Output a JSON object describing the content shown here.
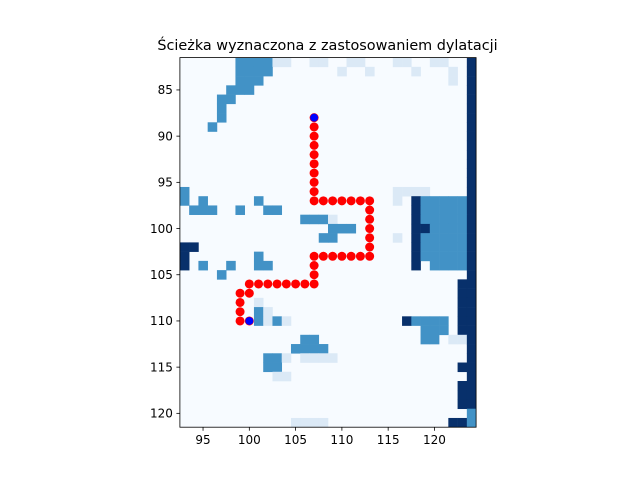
{
  "chart_data": {
    "type": "heatmap",
    "title": "Ścieżka wyznaczona z zastosowaniem dylatacji",
    "xlabel": "",
    "ylabel": "",
    "xlim": [
      92.5,
      124.5
    ],
    "ylim": [
      121.5,
      81.5
    ],
    "y_inverted": true,
    "grid": false,
    "colormap": "Blues",
    "colors": {
      "background": "#f7fbff",
      "light": "#dbe9f6",
      "medium": "#4292c6",
      "dark": "#08306b",
      "path": "#ff0000",
      "endpoint": "#0000ff"
    },
    "xticks": [
      95,
      100,
      105,
      110,
      115,
      120
    ],
    "yticks": [
      85,
      90,
      95,
      100,
      105,
      110,
      115,
      120
    ],
    "cell_levels": {
      "light": 1,
      "medium": 2,
      "dark": 3
    },
    "cells": [
      [
        99,
        82,
        2
      ],
      [
        100,
        82,
        2
      ],
      [
        101,
        82,
        2
      ],
      [
        102,
        82,
        2
      ],
      [
        103,
        82,
        1
      ],
      [
        104,
        82,
        1
      ],
      [
        107,
        82,
        1
      ],
      [
        108,
        82,
        1
      ],
      [
        111,
        82,
        1
      ],
      [
        112,
        82,
        1
      ],
      [
        116,
        82,
        1
      ],
      [
        117,
        82,
        1
      ],
      [
        120,
        82,
        1
      ],
      [
        121,
        82,
        1
      ],
      [
        124,
        82,
        3
      ],
      [
        99,
        83,
        2
      ],
      [
        100,
        83,
        2
      ],
      [
        101,
        83,
        2
      ],
      [
        102,
        83,
        2
      ],
      [
        110,
        83,
        1
      ],
      [
        113,
        83,
        1
      ],
      [
        118,
        83,
        1
      ],
      [
        122,
        83,
        1
      ],
      [
        124,
        83,
        3
      ],
      [
        99,
        84,
        2
      ],
      [
        100,
        84,
        2
      ],
      [
        101,
        84,
        2
      ],
      [
        122,
        84,
        1
      ],
      [
        124,
        84,
        3
      ],
      [
        98,
        85,
        2
      ],
      [
        99,
        85,
        2
      ],
      [
        100,
        85,
        2
      ],
      [
        124,
        85,
        3
      ],
      [
        97,
        86,
        2
      ],
      [
        98,
        86,
        2
      ],
      [
        124,
        86,
        3
      ],
      [
        97,
        87,
        2
      ],
      [
        124,
        87,
        3
      ],
      [
        97,
        88,
        2
      ],
      [
        124,
        88,
        3
      ],
      [
        96,
        89,
        2
      ],
      [
        124,
        89,
        3
      ],
      [
        124,
        90,
        3
      ],
      [
        124,
        91,
        3
      ],
      [
        124,
        92,
        3
      ],
      [
        124,
        93,
        3
      ],
      [
        124,
        94,
        3
      ],
      [
        124,
        95,
        3
      ],
      [
        93,
        96,
        2
      ],
      [
        116,
        96,
        1
      ],
      [
        117,
        96,
        1
      ],
      [
        118,
        96,
        1
      ],
      [
        119,
        96,
        1
      ],
      [
        124,
        96,
        3
      ],
      [
        93,
        97,
        2
      ],
      [
        95,
        97,
        2
      ],
      [
        101,
        97,
        2
      ],
      [
        116,
        97,
        1
      ],
      [
        118,
        97,
        3
      ],
      [
        119,
        97,
        2
      ],
      [
        120,
        97,
        2
      ],
      [
        121,
        97,
        2
      ],
      [
        122,
        97,
        2
      ],
      [
        123,
        97,
        2
      ],
      [
        124,
        97,
        3
      ],
      [
        94,
        98,
        2
      ],
      [
        95,
        98,
        2
      ],
      [
        96,
        98,
        2
      ],
      [
        99,
        98,
        2
      ],
      [
        102,
        98,
        2
      ],
      [
        103,
        98,
        2
      ],
      [
        118,
        98,
        3
      ],
      [
        119,
        98,
        2
      ],
      [
        120,
        98,
        2
      ],
      [
        121,
        98,
        2
      ],
      [
        122,
        98,
        2
      ],
      [
        123,
        98,
        2
      ],
      [
        124,
        98,
        3
      ],
      [
        106,
        99,
        2
      ],
      [
        107,
        99,
        2
      ],
      [
        108,
        99,
        2
      ],
      [
        109,
        99,
        1
      ],
      [
        118,
        99,
        3
      ],
      [
        119,
        99,
        2
      ],
      [
        120,
        99,
        2
      ],
      [
        121,
        99,
        2
      ],
      [
        122,
        99,
        2
      ],
      [
        123,
        99,
        2
      ],
      [
        124,
        99,
        3
      ],
      [
        109,
        100,
        2
      ],
      [
        110,
        100,
        2
      ],
      [
        111,
        100,
        2
      ],
      [
        118,
        100,
        3
      ],
      [
        119,
        100,
        3
      ],
      [
        120,
        100,
        2
      ],
      [
        121,
        100,
        2
      ],
      [
        122,
        100,
        2
      ],
      [
        123,
        100,
        2
      ],
      [
        124,
        100,
        3
      ],
      [
        108,
        101,
        2
      ],
      [
        109,
        101,
        2
      ],
      [
        116,
        101,
        1
      ],
      [
        118,
        101,
        3
      ],
      [
        119,
        101,
        2
      ],
      [
        120,
        101,
        2
      ],
      [
        121,
        101,
        2
      ],
      [
        122,
        101,
        2
      ],
      [
        123,
        101,
        2
      ],
      [
        124,
        101,
        3
      ],
      [
        93,
        102,
        3
      ],
      [
        94,
        102,
        3
      ],
      [
        118,
        102,
        3
      ],
      [
        119,
        102,
        2
      ],
      [
        120,
        102,
        2
      ],
      [
        121,
        102,
        2
      ],
      [
        122,
        102,
        2
      ],
      [
        123,
        102,
        2
      ],
      [
        124,
        102,
        3
      ],
      [
        93,
        103,
        3
      ],
      [
        101,
        103,
        2
      ],
      [
        118,
        103,
        3
      ],
      [
        119,
        103,
        2
      ],
      [
        120,
        103,
        2
      ],
      [
        121,
        103,
        2
      ],
      [
        122,
        103,
        2
      ],
      [
        123,
        103,
        2
      ],
      [
        124,
        103,
        3
      ],
      [
        93,
        104,
        3
      ],
      [
        95,
        104,
        2
      ],
      [
        98,
        104,
        2
      ],
      [
        101,
        104,
        2
      ],
      [
        102,
        104,
        2
      ],
      [
        118,
        104,
        3
      ],
      [
        120,
        104,
        2
      ],
      [
        121,
        104,
        2
      ],
      [
        122,
        104,
        2
      ],
      [
        123,
        104,
        2
      ],
      [
        124,
        104,
        3
      ],
      [
        97,
        105,
        2
      ],
      [
        124,
        105,
        3
      ],
      [
        123,
        106,
        3
      ],
      [
        124,
        106,
        3
      ],
      [
        123,
        107,
        3
      ],
      [
        124,
        107,
        3
      ],
      [
        101,
        108,
        1
      ],
      [
        123,
        108,
        3
      ],
      [
        124,
        108,
        3
      ],
      [
        101,
        109,
        2
      ],
      [
        102,
        109,
        1
      ],
      [
        123,
        109,
        3
      ],
      [
        124,
        109,
        3
      ],
      [
        101,
        110,
        2
      ],
      [
        102,
        110,
        1
      ],
      [
        103,
        110,
        2
      ],
      [
        104,
        110,
        1
      ],
      [
        117,
        110,
        3
      ],
      [
        118,
        110,
        2
      ],
      [
        119,
        110,
        2
      ],
      [
        120,
        110,
        2
      ],
      [
        121,
        110,
        2
      ],
      [
        123,
        110,
        3
      ],
      [
        124,
        110,
        3
      ],
      [
        119,
        111,
        2
      ],
      [
        120,
        111,
        2
      ],
      [
        121,
        111,
        2
      ],
      [
        123,
        111,
        3
      ],
      [
        124,
        111,
        3
      ],
      [
        106,
        112,
        2
      ],
      [
        107,
        112,
        2
      ],
      [
        119,
        112,
        2
      ],
      [
        120,
        112,
        2
      ],
      [
        122,
        112,
        1
      ],
      [
        123,
        112,
        1
      ],
      [
        124,
        112,
        3
      ],
      [
        105,
        113,
        2
      ],
      [
        106,
        113,
        2
      ],
      [
        107,
        113,
        2
      ],
      [
        108,
        113,
        2
      ],
      [
        124,
        113,
        3
      ],
      [
        102,
        114,
        2
      ],
      [
        103,
        114,
        2
      ],
      [
        104,
        114,
        1
      ],
      [
        106,
        114,
        1
      ],
      [
        107,
        114,
        1
      ],
      [
        108,
        114,
        1
      ],
      [
        109,
        114,
        1
      ],
      [
        124,
        114,
        3
      ],
      [
        102,
        115,
        2
      ],
      [
        103,
        115,
        2
      ],
      [
        123,
        115,
        3
      ],
      [
        124,
        115,
        3
      ],
      [
        103,
        116,
        1
      ],
      [
        104,
        116,
        1
      ],
      [
        124,
        116,
        3
      ],
      [
        123,
        117,
        3
      ],
      [
        124,
        117,
        3
      ],
      [
        123,
        118,
        3
      ],
      [
        124,
        118,
        3
      ],
      [
        123,
        119,
        3
      ],
      [
        124,
        119,
        3
      ],
      [
        124,
        120,
        2
      ],
      [
        122,
        121,
        3
      ],
      [
        123,
        121,
        3
      ],
      [
        124,
        121,
        2
      ],
      [
        105,
        121,
        1
      ],
      [
        106,
        121,
        1
      ],
      [
        107,
        121,
        1
      ],
      [
        108,
        121,
        1
      ]
    ],
    "path": [
      [
        107,
        88
      ],
      [
        107,
        89
      ],
      [
        107,
        90
      ],
      [
        107,
        91
      ],
      [
        107,
        92
      ],
      [
        107,
        93
      ],
      [
        107,
        94
      ],
      [
        107,
        95
      ],
      [
        107,
        96
      ],
      [
        107,
        97
      ],
      [
        108,
        97
      ],
      [
        109,
        97
      ],
      [
        110,
        97
      ],
      [
        111,
        97
      ],
      [
        112,
        97
      ],
      [
        113,
        97
      ],
      [
        113,
        98
      ],
      [
        113,
        99
      ],
      [
        113,
        100
      ],
      [
        113,
        101
      ],
      [
        113,
        102
      ],
      [
        113,
        103
      ],
      [
        112,
        103
      ],
      [
        111,
        103
      ],
      [
        110,
        103
      ],
      [
        109,
        103
      ],
      [
        108,
        103
      ],
      [
        107,
        103
      ],
      [
        107,
        104
      ],
      [
        107,
        105
      ],
      [
        107,
        106
      ],
      [
        106,
        106
      ],
      [
        105,
        106
      ],
      [
        104,
        106
      ],
      [
        103,
        106
      ],
      [
        102,
        106
      ],
      [
        101,
        106
      ],
      [
        100,
        106
      ],
      [
        100,
        107
      ],
      [
        99,
        107
      ],
      [
        99,
        108
      ],
      [
        99,
        109
      ],
      [
        99,
        110
      ],
      [
        100,
        110
      ]
    ],
    "endpoints": [
      [
        107,
        88
      ],
      [
        100,
        110
      ]
    ]
  }
}
